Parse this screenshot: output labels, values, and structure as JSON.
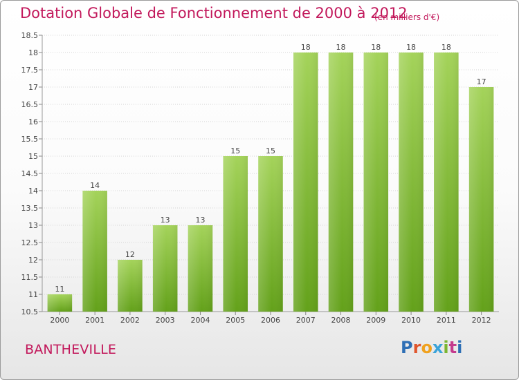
{
  "title": "Dotation Globale de Fonctionnement de 2000 à 2012",
  "subtitle": "(en milliers d'€)",
  "commune": "BANTHEVILLE",
  "logo": {
    "text": "Proxiti",
    "letter_colors": [
      "#2e6fb5",
      "#e0562d",
      "#f0a11e",
      "#3aa3d9",
      "#7bb531",
      "#c43b8e",
      "#2e6fb5"
    ]
  },
  "colors": {
    "title": "#c2185b",
    "bar_light": "#a4d35a",
    "bar_dark": "#63a11a",
    "grid": "#d4d4d4",
    "axis_text": "#444444"
  },
  "chart_data": {
    "type": "bar",
    "categories": [
      "2000",
      "2001",
      "2002",
      "2003",
      "2004",
      "2005",
      "2006",
      "2007",
      "2008",
      "2009",
      "2010",
      "2011",
      "2012"
    ],
    "values": [
      11,
      14,
      12,
      13,
      13,
      15,
      15,
      18,
      18,
      18,
      18,
      18,
      17
    ],
    "data_labels": [
      "11",
      "14",
      "12",
      "13",
      "13",
      "15",
      "15",
      "18",
      "18",
      "18",
      "18",
      "18",
      "17"
    ],
    "yticks": [
      "10.5",
      "11",
      "11.5",
      "12",
      "12.5",
      "13",
      "13.5",
      "14",
      "14.5",
      "15",
      "15.5",
      "16",
      "16.5",
      "17",
      "17.5",
      "18",
      "18.5"
    ],
    "ylim": [
      10.5,
      18.5
    ],
    "grid": true,
    "legend": "none"
  }
}
